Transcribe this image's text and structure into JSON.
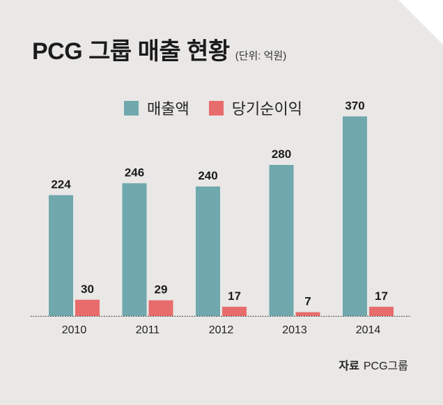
{
  "title": "PCG 그룹 매출 현황",
  "unit": "(단위: 억원)",
  "source_label": "자료",
  "source_text": "PCG그룹",
  "colors": {
    "background": "#e9e8e6",
    "revenue": "#6fa8ad",
    "net_income": "#e86c6c"
  },
  "chart_data": {
    "type": "bar",
    "categories": [
      "2010",
      "2011",
      "2012",
      "2013",
      "2014"
    ],
    "series": [
      {
        "name": "매출액",
        "values": [
          224,
          246,
          240,
          280,
          370
        ]
      },
      {
        "name": "당기순이익",
        "values": [
          30,
          29,
          17,
          7,
          17
        ]
      }
    ],
    "ylim": [
      0,
      400
    ],
    "grid": false,
    "legend": "top"
  }
}
